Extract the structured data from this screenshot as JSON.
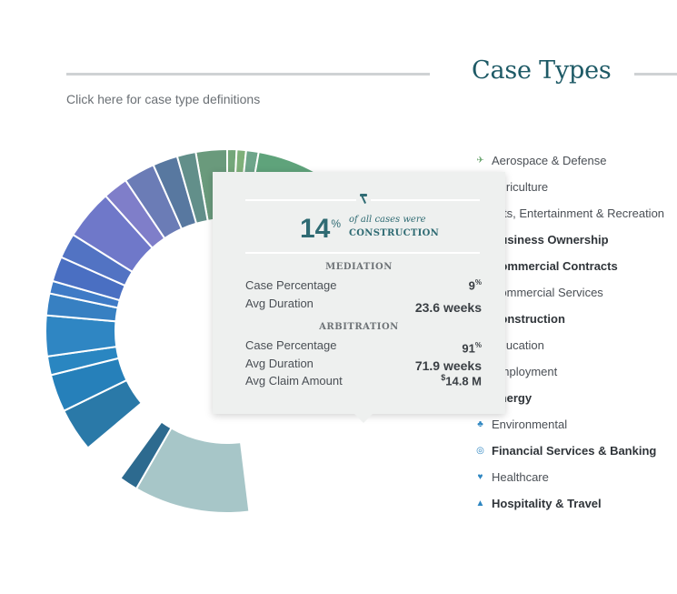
{
  "header": {
    "title": "Case Types",
    "definitions_link": "Click here for case type definitions"
  },
  "legend": [
    {
      "label": "Aerospace & Defense",
      "bold": false,
      "icon": "airplane-icon",
      "color": "#6aa56f"
    },
    {
      "label": "Agriculture",
      "bold": false,
      "icon": "wheat-icon",
      "color": "#6aa56f"
    },
    {
      "label": "Arts, Entertainment & Recreation",
      "bold": false,
      "icon": "masks-icon",
      "color": "#6aa56f"
    },
    {
      "label": "Business Ownership",
      "bold": true,
      "icon": "briefcase-icon",
      "color": "#6aa56f"
    },
    {
      "label": "Commercial Contracts",
      "bold": true,
      "icon": "contract-icon",
      "color": "#6aa56f"
    },
    {
      "label": "Commercial Services",
      "bold": false,
      "icon": "storefront-icon",
      "color": "#6aa56f"
    },
    {
      "label": "Construction",
      "bold": true,
      "icon": "hammer-icon",
      "color": "#6aa56f"
    },
    {
      "label": "Education",
      "bold": false,
      "icon": "graduation-cap-icon",
      "color": "#6aa56f"
    },
    {
      "label": "Employment",
      "bold": false,
      "icon": "id-badge-icon",
      "color": "#6aa56f"
    },
    {
      "label": "Energy",
      "bold": true,
      "icon": "bolt-icon",
      "color": "#6aa56f"
    },
    {
      "label": "Environmental",
      "bold": false,
      "icon": "tree-icon",
      "color": "#2e86c1"
    },
    {
      "label": "Financial Services & Banking",
      "bold": true,
      "icon": "coins-icon",
      "color": "#2e86c1"
    },
    {
      "label": "Healthcare",
      "bold": false,
      "icon": "heartbeat-icon",
      "color": "#2e86c1"
    },
    {
      "label": "Hospitality & Travel",
      "bold": true,
      "icon": "cloche-icon",
      "color": "#2e86c1"
    }
  ],
  "tooltip": {
    "icon": "hammer-icon",
    "percent": "14",
    "percent_sign": "%",
    "caption": "of all cases were",
    "category": "CONSTRUCTION",
    "mediation": {
      "heading": "MEDIATION",
      "case_percentage_label": "Case Percentage",
      "case_percentage_value": "9",
      "avg_duration_label": "Avg Duration",
      "avg_duration_value": "23.6 weeks"
    },
    "arbitration": {
      "heading": "ARBITRATION",
      "case_percentage_label": "Case Percentage",
      "case_percentage_value": "91",
      "avg_duration_label": "Avg Duration",
      "avg_duration_value": "71.9 weeks",
      "avg_claim_label": "Avg Claim Amount",
      "avg_claim_currency": "$",
      "avg_claim_value": "14.8 M"
    }
  },
  "chart_data": {
    "type": "pie",
    "variant": "donut",
    "highlighted_category": "Construction",
    "categories": [
      "Construction"
    ],
    "values": [
      14
    ],
    "unit": "% of all cases",
    "slice_colors": [
      "#5a9a78",
      "#6aa470",
      "#79ac74",
      "#6e9f86",
      "#628f8a",
      "#5b8491",
      "#5878a0",
      "#6b7cb6",
      "#7f7ec9",
      "#6f78c9",
      "#5273c3",
      "#4a6fc2",
      "#3f7bc6",
      "#3780c2",
      "#2f86c3",
      "#2a86c1",
      "#2680ba",
      "#2a79a8",
      "#2d7197",
      "#2d6a8f",
      "#a7c6c8"
    ],
    "legend_position": "right"
  }
}
